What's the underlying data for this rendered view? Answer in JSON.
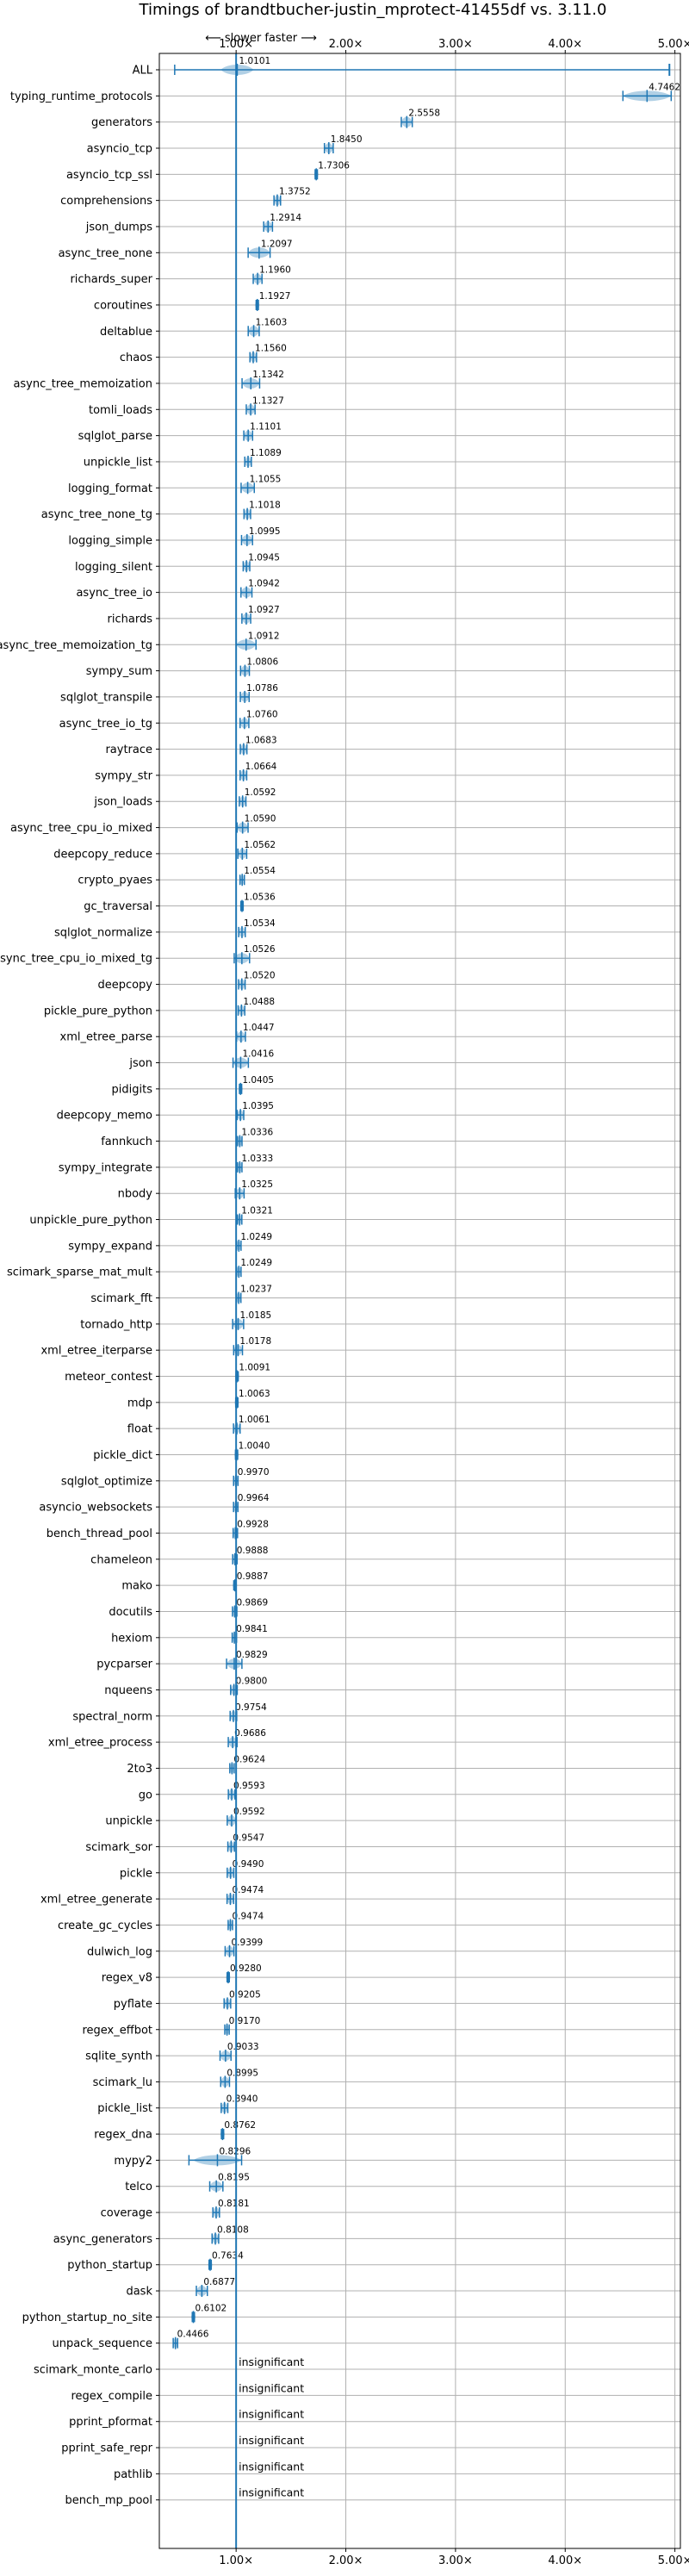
{
  "chart_data": {
    "type": "violin",
    "title": "Timings of brandtbucher-justin_mprotect-41455df vs. 3.11.0",
    "direction_label": "⟵ slower    faster ⟶",
    "xlim": [
      0.3,
      5.05
    ],
    "xticks": [
      1,
      2,
      3,
      4,
      5
    ],
    "xtick_labels": [
      "1.00×",
      "2.00×",
      "3.00×",
      "4.00×",
      "5.00×"
    ],
    "reference_x": 1.0,
    "grid": true,
    "color": "#1f77b4",
    "insignificant_label": "insignificant",
    "benchmarks": [
      {
        "name": "ALL",
        "value": 1.0101,
        "label": "1.0101",
        "lo": 0.44,
        "hi": 4.95,
        "spread": 0.15
      },
      {
        "name": "typing_runtime_protocols",
        "value": 4.7462,
        "label": "4.7462",
        "spread": 0.22
      },
      {
        "name": "generators",
        "value": 2.5558,
        "label": "2.5558",
        "spread": 0.05
      },
      {
        "name": "asyncio_tcp",
        "value": 1.845,
        "label": "1.8450",
        "spread": 0.04
      },
      {
        "name": "asyncio_tcp_ssl",
        "value": 1.7306,
        "label": "1.7306",
        "spread": 0.01
      },
      {
        "name": "comprehensions",
        "value": 1.3752,
        "label": "1.3752",
        "spread": 0.03
      },
      {
        "name": "json_dumps",
        "value": 1.2914,
        "label": "1.2914",
        "spread": 0.04
      },
      {
        "name": "async_tree_none",
        "value": 1.2097,
        "label": "1.2097",
        "spread": 0.1
      },
      {
        "name": "richards_super",
        "value": 1.196,
        "label": "1.1960",
        "spread": 0.04
      },
      {
        "name": "coroutines",
        "value": 1.1927,
        "label": "1.1927",
        "spread": 0.01
      },
      {
        "name": "deltablue",
        "value": 1.1603,
        "label": "1.1603",
        "spread": 0.05
      },
      {
        "name": "chaos",
        "value": 1.156,
        "label": "1.1560",
        "spread": 0.03
      },
      {
        "name": "async_tree_memoization",
        "value": 1.1342,
        "label": "1.1342",
        "spread": 0.08
      },
      {
        "name": "tomli_loads",
        "value": 1.1327,
        "label": "1.1327",
        "spread": 0.04
      },
      {
        "name": "sqlglot_parse",
        "value": 1.1101,
        "label": "1.1101",
        "spread": 0.04
      },
      {
        "name": "unpickle_list",
        "value": 1.1089,
        "label": "1.1089",
        "spread": 0.03
      },
      {
        "name": "logging_format",
        "value": 1.1055,
        "label": "1.1055",
        "spread": 0.06
      },
      {
        "name": "async_tree_none_tg",
        "value": 1.1018,
        "label": "1.1018",
        "spread": 0.03
      },
      {
        "name": "logging_simple",
        "value": 1.0995,
        "label": "1.0995",
        "spread": 0.05
      },
      {
        "name": "logging_silent",
        "value": 1.0945,
        "label": "1.0945",
        "spread": 0.03
      },
      {
        "name": "async_tree_io",
        "value": 1.0942,
        "label": "1.0942",
        "spread": 0.05
      },
      {
        "name": "richards",
        "value": 1.0927,
        "label": "1.0927",
        "spread": 0.04
      },
      {
        "name": "async_tree_memoization_tg",
        "value": 1.0912,
        "label": "1.0912",
        "spread": 0.09
      },
      {
        "name": "sympy_sum",
        "value": 1.0806,
        "label": "1.0806",
        "spread": 0.04
      },
      {
        "name": "sqlglot_transpile",
        "value": 1.0786,
        "label": "1.0786",
        "spread": 0.04
      },
      {
        "name": "async_tree_io_tg",
        "value": 1.076,
        "label": "1.0760",
        "spread": 0.04
      },
      {
        "name": "raytrace",
        "value": 1.0683,
        "label": "1.0683",
        "spread": 0.03
      },
      {
        "name": "sympy_str",
        "value": 1.0664,
        "label": "1.0664",
        "spread": 0.03
      },
      {
        "name": "json_loads",
        "value": 1.0592,
        "label": "1.0592",
        "spread": 0.03
      },
      {
        "name": "async_tree_cpu_io_mixed",
        "value": 1.059,
        "label": "1.0590",
        "spread": 0.05
      },
      {
        "name": "deepcopy_reduce",
        "value": 1.0562,
        "label": "1.0562",
        "spread": 0.04
      },
      {
        "name": "crypto_pyaes",
        "value": 1.0554,
        "label": "1.0554",
        "spread": 0.02
      },
      {
        "name": "gc_traversal",
        "value": 1.0536,
        "label": "1.0536",
        "spread": 0.01
      },
      {
        "name": "sqlglot_normalize",
        "value": 1.0534,
        "label": "1.0534",
        "spread": 0.03
      },
      {
        "name": "async_tree_cpu_io_mixed_tg",
        "value": 1.0526,
        "label": "1.0526",
        "spread": 0.07
      },
      {
        "name": "deepcopy",
        "value": 1.052,
        "label": "1.0520",
        "spread": 0.03
      },
      {
        "name": "pickle_pure_python",
        "value": 1.0488,
        "label": "1.0488",
        "spread": 0.03
      },
      {
        "name": "xml_etree_parse",
        "value": 1.0447,
        "label": "1.0447",
        "spread": 0.04
      },
      {
        "name": "json",
        "value": 1.0416,
        "label": "1.0416",
        "spread": 0.07
      },
      {
        "name": "pidigits",
        "value": 1.0405,
        "label": "1.0405",
        "spread": 0.01
      },
      {
        "name": "deepcopy_memo",
        "value": 1.0395,
        "label": "1.0395",
        "spread": 0.03
      },
      {
        "name": "fannkuch",
        "value": 1.0336,
        "label": "1.0336",
        "spread": 0.02
      },
      {
        "name": "sympy_integrate",
        "value": 1.0333,
        "label": "1.0333",
        "spread": 0.02
      },
      {
        "name": "nbody",
        "value": 1.0325,
        "label": "1.0325",
        "spread": 0.04
      },
      {
        "name": "unpickle_pure_python",
        "value": 1.0321,
        "label": "1.0321",
        "spread": 0.02
      },
      {
        "name": "sympy_expand",
        "value": 1.0249,
        "label": "1.0249",
        "spread": 0.02
      },
      {
        "name": "scimark_sparse_mat_mult",
        "value": 1.0249,
        "label": "1.0249",
        "spread": 0.02
      },
      {
        "name": "scimark_fft",
        "value": 1.0237,
        "label": "1.0237",
        "spread": 0.02
      },
      {
        "name": "tornado_http",
        "value": 1.0185,
        "label": "1.0185",
        "spread": 0.05
      },
      {
        "name": "xml_etree_iterparse",
        "value": 1.0178,
        "label": "1.0178",
        "spread": 0.04
      },
      {
        "name": "meteor_contest",
        "value": 1.0091,
        "label": "1.0091",
        "spread": 0.01
      },
      {
        "name": "mdp",
        "value": 1.0063,
        "label": "1.0063",
        "spread": 0.01
      },
      {
        "name": "float",
        "value": 1.0061,
        "label": "1.0061",
        "spread": 0.03
      },
      {
        "name": "pickle_dict",
        "value": 1.004,
        "label": "1.0040",
        "spread": 0.01
      },
      {
        "name": "sqlglot_optimize",
        "value": 0.997,
        "label": "0.9970",
        "spread": 0.02
      },
      {
        "name": "asyncio_websockets",
        "value": 0.9964,
        "label": "0.9964",
        "spread": 0.02
      },
      {
        "name": "bench_thread_pool",
        "value": 0.9928,
        "label": "0.9928",
        "spread": 0.02
      },
      {
        "name": "chameleon",
        "value": 0.9888,
        "label": "0.9888",
        "spread": 0.02
      },
      {
        "name": "mako",
        "value": 0.9887,
        "label": "0.9887",
        "spread": 0.01
      },
      {
        "name": "docutils",
        "value": 0.9869,
        "label": "0.9869",
        "spread": 0.02
      },
      {
        "name": "hexiom",
        "value": 0.9841,
        "label": "0.9841",
        "spread": 0.02
      },
      {
        "name": "pycparser",
        "value": 0.9829,
        "label": "0.9829",
        "spread": 0.07
      },
      {
        "name": "nqueens",
        "value": 0.98,
        "label": "0.9800",
        "spread": 0.03
      },
      {
        "name": "spectral_norm",
        "value": 0.9754,
        "label": "0.9754",
        "spread": 0.03
      },
      {
        "name": "xml_etree_process",
        "value": 0.9686,
        "label": "0.9686",
        "spread": 0.04
      },
      {
        "name": "2to3",
        "value": 0.9624,
        "label": "0.9624",
        "spread": 0.02
      },
      {
        "name": "go",
        "value": 0.9593,
        "label": "0.9593",
        "spread": 0.03
      },
      {
        "name": "unpickle",
        "value": 0.9592,
        "label": "0.9592",
        "spread": 0.04
      },
      {
        "name": "scimark_sor",
        "value": 0.9547,
        "label": "0.9547",
        "spread": 0.03
      },
      {
        "name": "pickle",
        "value": 0.949,
        "label": "0.9490",
        "spread": 0.03
      },
      {
        "name": "xml_etree_generate",
        "value": 0.9474,
        "label": "0.9474",
        "spread": 0.03
      },
      {
        "name": "create_gc_cycles",
        "value": 0.9474,
        "label": "0.9474",
        "spread": 0.02
      },
      {
        "name": "dulwich_log",
        "value": 0.9399,
        "label": "0.9399",
        "spread": 0.04
      },
      {
        "name": "regex_v8",
        "value": 0.928,
        "label": "0.9280",
        "spread": 0.01
      },
      {
        "name": "pyflate",
        "value": 0.9205,
        "label": "0.9205",
        "spread": 0.03
      },
      {
        "name": "regex_effbot",
        "value": 0.917,
        "label": "0.9170",
        "spread": 0.02
      },
      {
        "name": "sqlite_synth",
        "value": 0.9033,
        "label": "0.9033",
        "spread": 0.05
      },
      {
        "name": "scimark_lu",
        "value": 0.8995,
        "label": "0.8995",
        "spread": 0.04
      },
      {
        "name": "pickle_list",
        "value": 0.894,
        "label": "0.8940",
        "spread": 0.03
      },
      {
        "name": "regex_dna",
        "value": 0.8762,
        "label": "0.8762",
        "spread": 0.01
      },
      {
        "name": "mypy2",
        "value": 0.8296,
        "label": "0.8296",
        "lo": 0.57,
        "hi": 1.05,
        "spread": 0.22
      },
      {
        "name": "telco",
        "value": 0.8195,
        "label": "0.8195",
        "spread": 0.06
      },
      {
        "name": "coverage",
        "value": 0.8181,
        "label": "0.8181",
        "spread": 0.03
      },
      {
        "name": "async_generators",
        "value": 0.8108,
        "label": "0.8108",
        "spread": 0.03
      },
      {
        "name": "python_startup",
        "value": 0.7634,
        "label": "0.7634",
        "spread": 0.01
      },
      {
        "name": "dask",
        "value": 0.6877,
        "label": "0.6877",
        "spread": 0.05
      },
      {
        "name": "python_startup_no_site",
        "value": 0.6102,
        "label": "0.6102",
        "spread": 0.01
      },
      {
        "name": "unpack_sequence",
        "value": 0.4466,
        "label": "0.4466",
        "spread": 0.02
      },
      {
        "name": "scimark_monte_carlo",
        "insignificant": true
      },
      {
        "name": "regex_compile",
        "insignificant": true
      },
      {
        "name": "pprint_pformat",
        "insignificant": true
      },
      {
        "name": "pprint_safe_repr",
        "insignificant": true
      },
      {
        "name": "pathlib",
        "insignificant": true
      },
      {
        "name": "bench_mp_pool",
        "insignificant": true
      }
    ]
  }
}
